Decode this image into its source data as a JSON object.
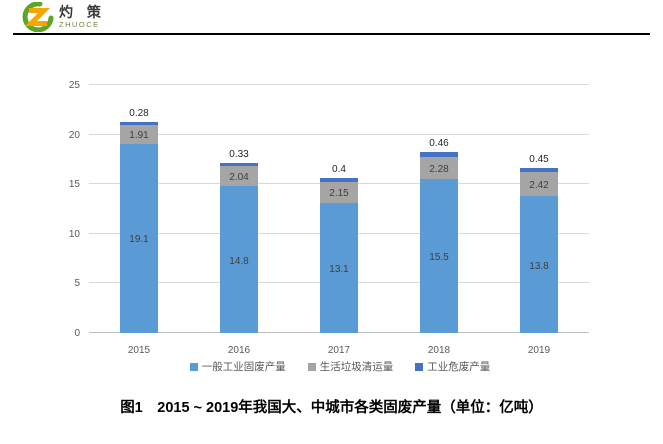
{
  "logo": {
    "name_cn": "灼 策",
    "name_en": "ZHUOCE",
    "icon_green": "#5da427",
    "icon_orange": "#f7a600"
  },
  "chart_data": {
    "type": "bar",
    "stacked": true,
    "categories": [
      "2015",
      "2016",
      "2017",
      "2018",
      "2019"
    ],
    "series": [
      {
        "name": "一般工业固废产量",
        "color": "#5B9BD5",
        "values": [
          19.1,
          14.8,
          13.1,
          15.5,
          13.8
        ],
        "labels": [
          "19.1",
          "14.8",
          "13.1",
          "15.5",
          "13.8"
        ]
      },
      {
        "name": "生活垃圾清运量",
        "color": "#A5A5A5",
        "values": [
          1.91,
          2.04,
          2.15,
          2.28,
          2.42
        ],
        "labels": [
          "1.91",
          "2.04",
          "2.15",
          "2.28",
          "2.42"
        ]
      },
      {
        "name": "工业危废产量",
        "color": "#4472C4",
        "values": [
          0.28,
          0.33,
          0.4,
          0.46,
          0.45
        ],
        "labels": [
          "0.28",
          "0.33",
          "0.4",
          "0.46",
          "0.45"
        ]
      }
    ],
    "ylim": [
      0,
      25
    ],
    "yticks": [
      0,
      5,
      10,
      15,
      20,
      25
    ],
    "grid": true,
    "legend_position": "bottom",
    "title": ""
  },
  "caption": "图1　2015 ~ 2019年我国大、中城市各类固废产量（单位：亿吨）",
  "colors": {
    "gridline": "#D9D9D9",
    "axis_line": "#BFBFBF",
    "axis_text": "#595959",
    "data_label": "#3F3F3F",
    "caption_text": "#000000"
  }
}
